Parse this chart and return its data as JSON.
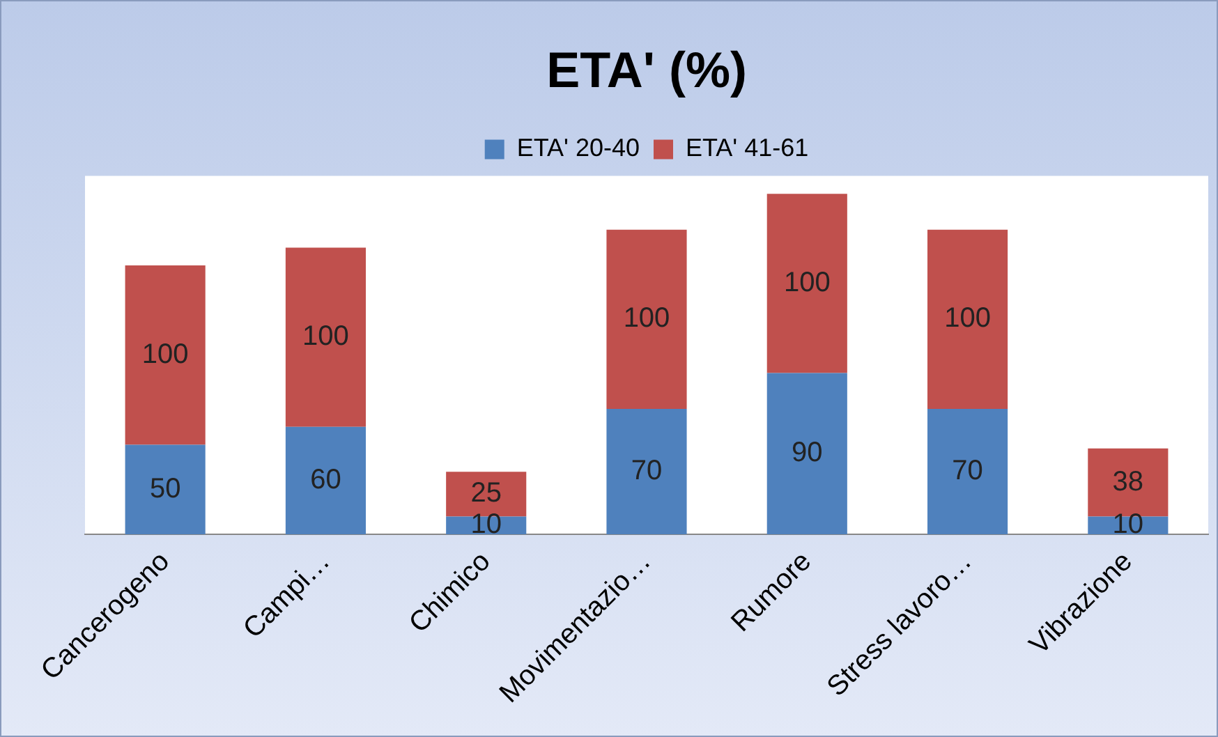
{
  "chart_data": {
    "type": "bar",
    "title": "ETA' (%)",
    "stacked": true,
    "data_labels": true,
    "legend": "top",
    "grid": false,
    "categories": [
      "Cancerogeno",
      "Campi…",
      "Chimico",
      "Movimentazio…",
      "Rumore",
      "Stress lavoro…",
      "Vibrazione"
    ],
    "series": [
      {
        "name": "ETA' 20-40",
        "color": "#4f81bd",
        "values": [
          50,
          60,
          10,
          70,
          90,
          70,
          10
        ]
      },
      {
        "name": "ETA' 41-61",
        "color": "#c0504d",
        "values": [
          100,
          100,
          25,
          100,
          100,
          100,
          38
        ]
      }
    ]
  }
}
